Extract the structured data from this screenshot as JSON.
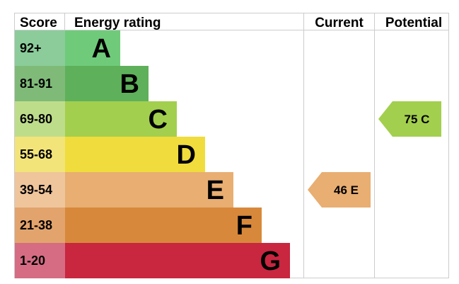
{
  "headers": {
    "score": "Score",
    "energy_rating": "Energy rating",
    "current": "Current",
    "potential": "Potential"
  },
  "chart_data": {
    "type": "bar",
    "bands": [
      {
        "score": "92+",
        "letter": "A",
        "color": "#6fcb7a",
        "score_bg": "#8bcc9a"
      },
      {
        "score": "81-91",
        "letter": "B",
        "color": "#5fb05a",
        "score_bg": "#7fba78"
      },
      {
        "score": "69-80",
        "letter": "C",
        "color": "#a3cf4e",
        "score_bg": "#bedd8a"
      },
      {
        "score": "55-68",
        "letter": "D",
        "color": "#f0dc3c",
        "score_bg": "#f3e47a"
      },
      {
        "score": "39-54",
        "letter": "E",
        "color": "#e8ae72",
        "score_bg": "#efc59c"
      },
      {
        "score": "21-38",
        "letter": "F",
        "color": "#d8883a",
        "score_bg": "#e2a46c"
      },
      {
        "score": "1-20",
        "letter": "G",
        "color": "#c92640",
        "score_bg": "#d66c84"
      }
    ],
    "current": {
      "value": 46,
      "letter": "E",
      "label": "46 E",
      "color": "#e8ae72"
    },
    "potential": {
      "value": 75,
      "letter": "C",
      "label": "75 C",
      "color": "#a3cf4e"
    }
  }
}
